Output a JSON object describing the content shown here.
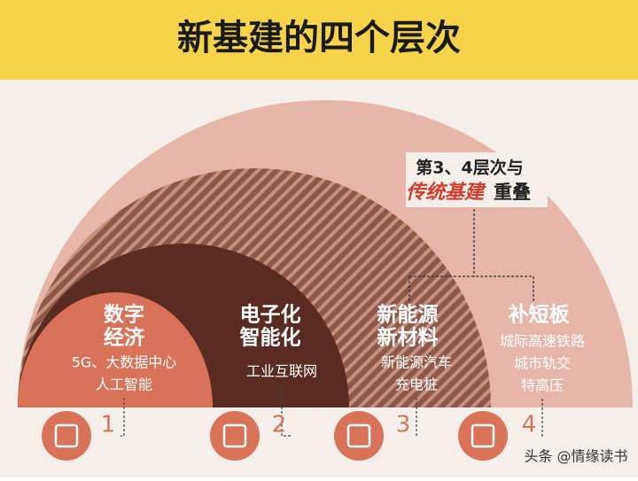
{
  "header": {
    "title": "新基建的四个层次"
  },
  "annotation": {
    "line1": "第3、4层次与",
    "highlight": "传统基建",
    "tail": "重叠"
  },
  "layers": [
    {
      "number": "1",
      "title_lines": [
        "数字",
        "经济"
      ],
      "items": [
        "5G、大数据中心",
        "人工智能"
      ]
    },
    {
      "number": "2",
      "title_lines": [
        "电子化",
        "智能化"
      ],
      "items": [
        "工业互联网"
      ]
    },
    {
      "number": "3",
      "title_lines": [
        "新能源",
        "新材料"
      ],
      "items": [
        "新能源汽车",
        "充电桩"
      ]
    },
    {
      "number": "4",
      "title_lines": [
        "补短板"
      ],
      "items": [
        "城际高速铁路",
        "城市轨交",
        "特高压"
      ]
    }
  ],
  "watermark": "头条 @情缘读书"
}
